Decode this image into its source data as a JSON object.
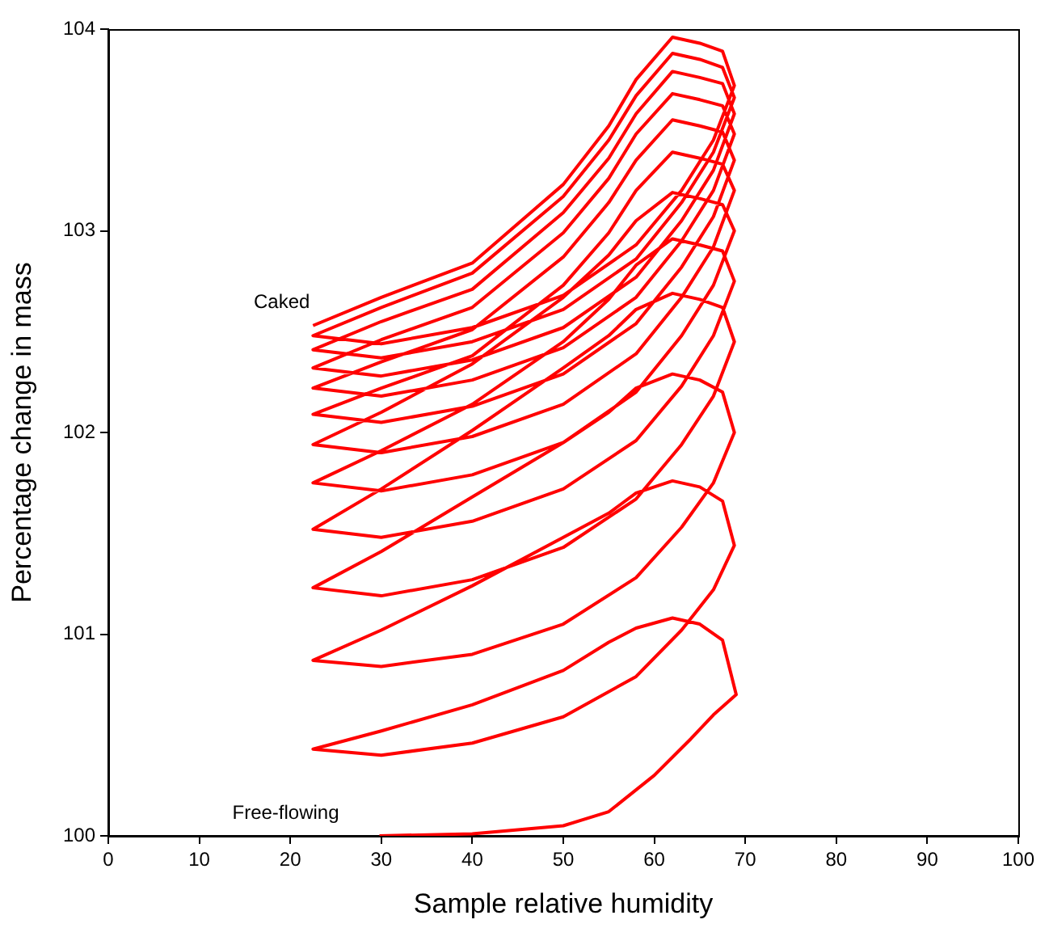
{
  "chart_data": {
    "type": "line",
    "xlabel": "Sample relative humidity",
    "ylabel": "Percentage change in mass",
    "xlim": [
      0,
      100
    ],
    "xticks": [
      0,
      10,
      20,
      30,
      40,
      50,
      60,
      70,
      80,
      90,
      100
    ],
    "ylim": [
      100,
      104
    ],
    "yticks": [
      100,
      101,
      102,
      103,
      104
    ],
    "grid": false,
    "legend": false,
    "marker": "none",
    "line_style": "solid",
    "annotations": [
      "Caked",
      "Free-flowing"
    ],
    "series": [
      {
        "color": "#ff0000",
        "x": [
          29.8,
          40,
          50,
          55,
          60,
          64,
          66.5,
          69,
          67.5,
          65,
          62,
          58,
          55,
          50,
          40,
          30,
          22.5,
          30,
          40,
          50,
          58,
          63,
          66.5,
          68.8,
          67.5,
          65,
          62,
          58,
          55,
          50,
          40,
          30,
          22.5,
          30,
          40,
          50,
          58,
          63,
          66.5,
          68.8,
          67.5,
          65,
          62,
          58,
          55,
          50,
          40,
          30,
          22.5,
          30,
          40,
          50,
          58,
          63,
          66.5,
          68.8,
          67.5,
          65,
          62,
          58,
          55,
          50,
          40,
          30,
          22.5,
          30,
          40,
          50,
          58,
          63,
          66.5,
          68.8,
          67.5,
          65,
          62,
          58,
          55,
          50,
          40,
          30,
          22.5,
          30,
          40,
          50,
          58,
          63,
          66.5,
          68.8,
          67.5,
          65,
          62,
          58,
          55,
          50,
          40,
          30,
          22.5,
          30,
          40,
          50,
          58,
          63,
          66.5,
          68.8,
          67.5,
          65,
          62,
          58,
          55,
          50,
          40,
          30,
          22.5,
          30,
          40,
          50,
          58,
          63,
          66.5,
          68.8,
          67.5,
          65,
          62,
          58,
          55,
          50,
          40,
          30,
          22.5,
          30,
          40,
          50,
          58,
          63,
          66.5,
          68.8,
          67.5,
          65,
          62,
          58,
          55,
          50,
          40,
          30,
          22.5,
          30,
          40,
          50,
          58,
          63,
          66.5,
          68.8,
          67.5,
          65,
          62,
          58,
          55,
          50,
          40,
          30,
          22.5,
          30,
          40,
          50,
          58,
          63,
          66.5,
          68.8,
          67.5,
          65,
          62,
          58,
          55,
          50,
          40,
          30,
          22.5,
          30,
          40,
          50,
          58,
          63,
          66.5,
          68.8,
          67.5,
          65,
          62,
          58,
          55,
          50,
          40,
          30,
          22.5
        ],
        "values": [
          100,
          100.01,
          100.05,
          100.12,
          100.3,
          100.48,
          100.6,
          100.7,
          100.97,
          101.05,
          101.08,
          101.03,
          100.96,
          100.82,
          100.65,
          100.52,
          100.43,
          100.4,
          100.46,
          100.59,
          100.79,
          101.02,
          101.22,
          101.44,
          101.66,
          101.73,
          101.76,
          101.7,
          101.6,
          101.48,
          101.24,
          101.02,
          100.87,
          100.84,
          100.9,
          101.05,
          101.28,
          101.53,
          101.75,
          102.0,
          102.2,
          102.26,
          102.29,
          102.22,
          102.1,
          101.95,
          101.68,
          101.41,
          101.23,
          101.19,
          101.27,
          101.43,
          101.67,
          101.94,
          102.18,
          102.45,
          102.62,
          102.66,
          102.69,
          102.61,
          102.48,
          102.32,
          102.01,
          101.72,
          101.52,
          101.48,
          101.56,
          101.72,
          101.96,
          102.23,
          102.48,
          102.75,
          102.9,
          102.93,
          102.96,
          102.83,
          102.66,
          102.45,
          102.14,
          101.91,
          101.75,
          101.71,
          101.79,
          101.95,
          102.2,
          102.48,
          102.73,
          103.0,
          103.13,
          103.16,
          103.19,
          103.05,
          102.88,
          102.67,
          102.34,
          102.1,
          101.94,
          101.9,
          101.98,
          102.14,
          102.39,
          102.67,
          102.92,
          103.2,
          103.33,
          103.36,
          103.39,
          103.2,
          102.99,
          102.73,
          102.38,
          102.22,
          102.09,
          102.05,
          102.13,
          102.29,
          102.54,
          102.82,
          103.07,
          103.35,
          103.49,
          103.52,
          103.55,
          103.35,
          103.14,
          102.87,
          102.51,
          102.35,
          102.22,
          102.18,
          102.26,
          102.42,
          102.67,
          102.95,
          103.2,
          103.48,
          103.62,
          103.65,
          103.68,
          103.48,
          103.26,
          102.99,
          102.62,
          102.46,
          102.32,
          102.28,
          102.36,
          102.52,
          102.77,
          103.05,
          103.3,
          103.58,
          103.73,
          103.76,
          103.79,
          103.58,
          103.36,
          103.09,
          102.71,
          102.55,
          102.41,
          102.37,
          102.45,
          102.61,
          102.86,
          103.14,
          103.39,
          103.66,
          103.81,
          103.85,
          103.88,
          103.67,
          103.45,
          103.17,
          102.79,
          102.62,
          102.48,
          102.44,
          102.52,
          102.68,
          102.93,
          103.2,
          103.45,
          103.72,
          103.89,
          103.93,
          103.96,
          103.75,
          103.52,
          103.23,
          102.84,
          102.67,
          102.53
        ]
      }
    ]
  }
}
